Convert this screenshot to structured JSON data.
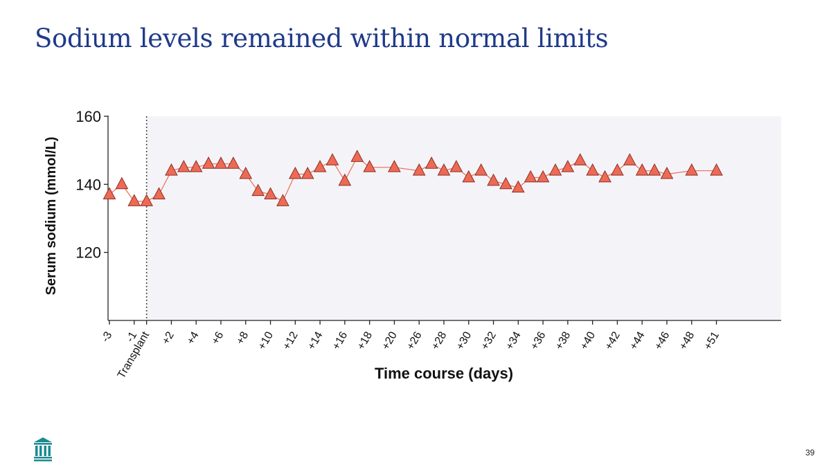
{
  "slide": {
    "title": "Sodium levels remained within normal limits",
    "page_number": "39"
  },
  "colors": {
    "title": "#1f3a8a",
    "marker_fill": "#ee6a55",
    "marker_stroke": "#8a2f22",
    "line": "#ee6a55",
    "shaded_region": "#f4f4f8",
    "logo": "#1a8a8e"
  },
  "icons": {
    "logo": "institution-columns-icon"
  },
  "chart_data": {
    "type": "line",
    "title": "",
    "xlabel": "Time course (days)",
    "ylabel": "Serum sodium (mmol/L)",
    "ylim": [
      100,
      160
    ],
    "yticks": [
      120,
      140,
      160
    ],
    "x_range": [
      -3,
      51
    ],
    "marker": "triangle",
    "reference_line": {
      "x": 0,
      "style": "dotted",
      "label": "Transplant"
    },
    "shaded_region": {
      "x_from": 0,
      "x_to": 51
    },
    "xticks": [
      {
        "x": -3,
        "label": "-3"
      },
      {
        "x": -1,
        "label": "-1"
      },
      {
        "x": 0,
        "label": "Transplant"
      },
      {
        "x": 2,
        "label": "+2"
      },
      {
        "x": 4,
        "label": "+4"
      },
      {
        "x": 6,
        "label": "+6"
      },
      {
        "x": 8,
        "label": "+8"
      },
      {
        "x": 10,
        "label": "+10"
      },
      {
        "x": 12,
        "label": "+12"
      },
      {
        "x": 14,
        "label": "+14"
      },
      {
        "x": 16,
        "label": "+16"
      },
      {
        "x": 18,
        "label": "+18"
      },
      {
        "x": 20,
        "label": "+20"
      },
      {
        "x": 22,
        "label": "+26"
      },
      {
        "x": 24,
        "label": "+28"
      },
      {
        "x": 26,
        "label": "+30"
      },
      {
        "x": 28,
        "label": "+32"
      },
      {
        "x": 30,
        "label": "+34"
      },
      {
        "x": 32,
        "label": "+36"
      },
      {
        "x": 34,
        "label": "+38"
      },
      {
        "x": 36,
        "label": "+40"
      },
      {
        "x": 38,
        "label": "+42"
      },
      {
        "x": 40,
        "label": "+44"
      },
      {
        "x": 42,
        "label": "+46"
      },
      {
        "x": 44,
        "label": "+48"
      },
      {
        "x": 46,
        "label": "+51"
      }
    ],
    "series": [
      {
        "name": "Serum sodium",
        "x": [
          -3,
          -2,
          -1,
          0,
          1,
          2,
          3,
          4,
          5,
          6,
          7,
          8,
          9,
          10,
          11,
          12,
          13,
          14,
          15,
          16,
          17,
          18,
          20,
          22,
          23,
          24,
          25,
          26,
          27,
          28,
          29,
          30,
          31,
          32,
          33,
          34,
          35,
          36,
          37,
          38,
          39,
          40,
          41,
          42,
          44,
          46
        ],
        "values": [
          137,
          140,
          135,
          135,
          137,
          144,
          145,
          145,
          146,
          146,
          146,
          143,
          138,
          137,
          135,
          143,
          143,
          145,
          147,
          141,
          148,
          145,
          145,
          144,
          146,
          144,
          145,
          142,
          144,
          141,
          140,
          139,
          142,
          142,
          144,
          145,
          147,
          144,
          142,
          144,
          147,
          144,
          144,
          143,
          144,
          144
        ]
      }
    ]
  }
}
